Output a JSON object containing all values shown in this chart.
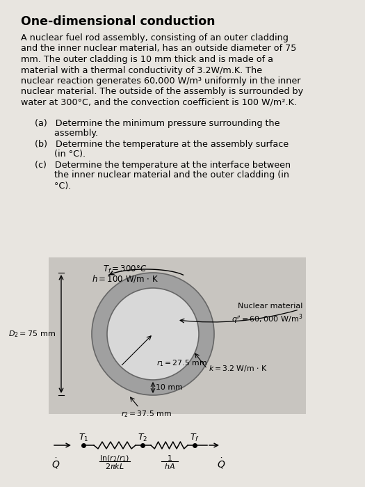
{
  "title": "One-dimensional conduction",
  "body_lines": [
    "A nuclear fuel rod assembly, consisting of an outer cladding",
    "and the inner nuclear material, has an outside diameter of 75",
    "mm. The outer cladding is 10 mm thick and is made of a",
    "material with a thermal conductivity of 3.2W/m.K. The",
    "nuclear reaction generates 60,000 W/m³ uniformly in the inner",
    "nuclear material. The outside of the assembly is surrounded by",
    "water at 300°C, and the convection coefficient is 100 W/m².K."
  ],
  "item_a_line1": "(a)   Determine the minimum pressure surrounding the",
  "item_a_line2": "       assembly.",
  "item_b_line1": "(b)   Determine the temperature at the assembly surface",
  "item_b_line2": "       (in °C).",
  "item_c_line1": "(c)   Determine the temperature at the interface between",
  "item_c_line2": "       the inner nuclear material and the outer cladding (in",
  "item_c_line3": "       °C).",
  "bg_color": "#e8e5e0",
  "diagram_bg": "#c8c5c0",
  "outer_ellipse_color": "#a0a0a0",
  "inner_ellipse_color": "#d8d8d8",
  "label_Tf": "$T_f = 300°C$",
  "label_h": "$h = 100$ W/m $\\cdot$ K",
  "label_nuclear_1": "Nuclear material",
  "label_nuclear_2": "$q'' = 60,000$ W/m$^3$",
  "label_D2": "$D_2 = 75$ mm",
  "label_r1": "$r_1 = 27.5$ mm",
  "label_10mm": "10 mm",
  "label_k": "$k = 3.2$ W/m $\\cdot$ K",
  "label_r2": "$r_2 = 37.5$ mm",
  "ckt_T1": "$T_1$",
  "ckt_T2": "$T_2$",
  "ckt_Tf": "$T_f$",
  "ckt_R1_num": "ln($r_2/r_1$)",
  "ckt_R1_den": "2πkL",
  "ckt_R2_num": "1",
  "ckt_R2_den": "hA",
  "ckt_Qdot": "$\\dot{Q}$"
}
